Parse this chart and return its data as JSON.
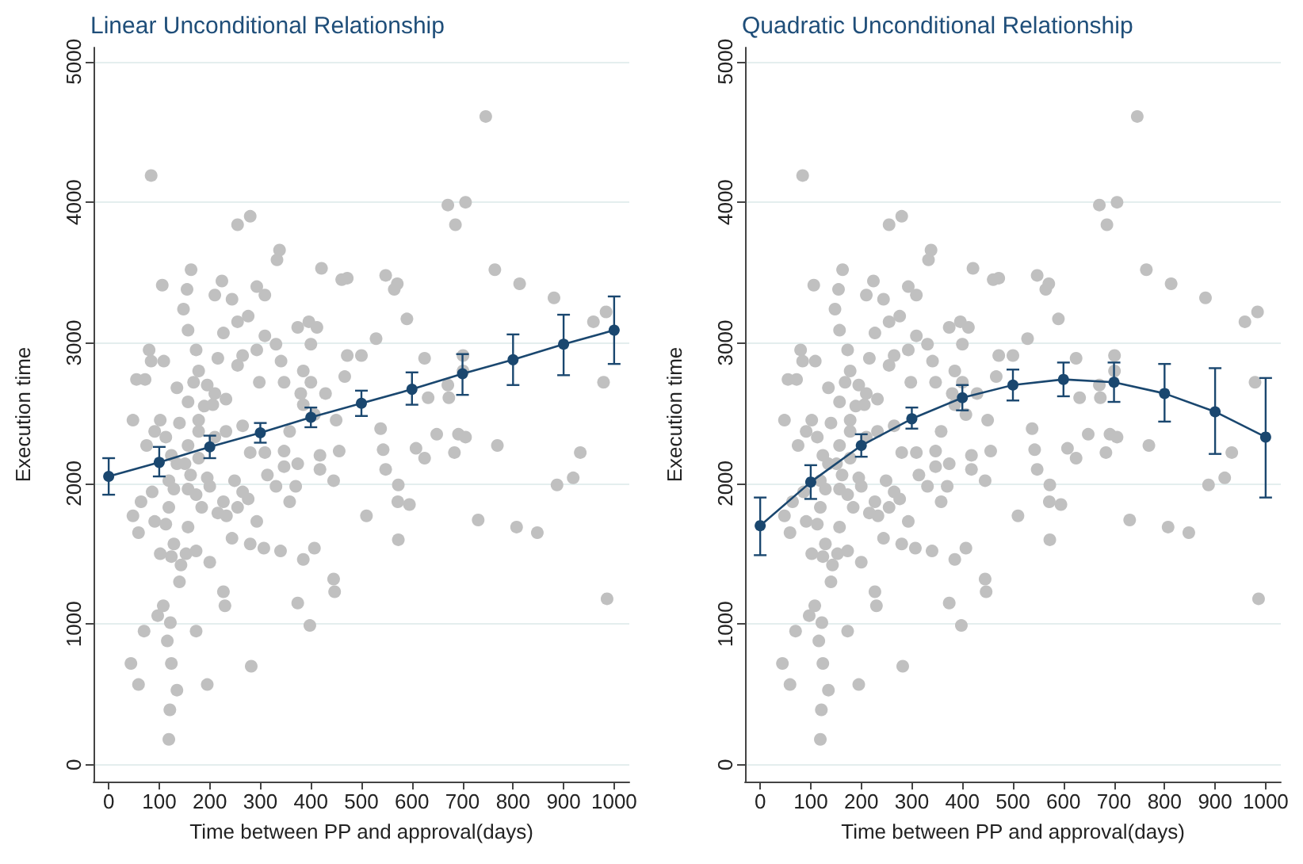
{
  "chart_data": [
    {
      "type": "scatter",
      "title": "Linear Unconditional Relationship",
      "xlabel": "Time between PP and approval(days)",
      "ylabel": "Execution time",
      "xlim": [
        -30,
        1030
      ],
      "ylim": [
        -120,
        5100
      ],
      "xticks": [
        0,
        100,
        200,
        300,
        400,
        500,
        600,
        700,
        800,
        900,
        1000
      ],
      "yticks": [
        0,
        1000,
        2000,
        3000,
        4000,
        5000
      ],
      "grid": "y",
      "marker": "circle",
      "series": [
        {
          "color": "#c0c0c0",
          "x": [
            84,
            255,
            280,
            746,
            671,
            706,
            686,
            333,
            338,
            163,
            106,
            421,
            764,
            813,
            881,
            959,
            984,
            979,
            769,
            684,
            933,
            919,
            887,
            731,
            807,
            848,
            986,
            510,
            573,
            595,
            572,
            573,
            461,
            472,
            548,
            565,
            571,
            529,
            590,
            632,
            625,
            608,
            625,
            538,
            548,
            543,
            701,
            701,
            692,
            706,
            649,
            671,
            673,
            500,
            472,
            467,
            450,
            456,
            418,
            418,
            445,
            445,
            447,
            385,
            407,
            398,
            374,
            340,
            307,
            280,
            293,
            282,
            195,
            200,
            227,
            230,
            173,
            70,
            97,
            108,
            122,
            116,
            124,
            135,
            121,
            119,
            44,
            59,
            48,
            59,
            48,
            55,
            72,
            80,
            84,
            109,
            91,
            75,
            91,
            102,
            124,
            140,
            143,
            153,
            157,
            129,
            140,
            178,
            148,
            155,
            157,
            178,
            173,
            216,
            227,
            210,
            224,
            244,
            265,
            255,
            276,
            293,
            309,
            309,
            293,
            331,
            341,
            347,
            298,
            255,
            232,
            210,
            189,
            178,
            210,
            232,
            265,
            280,
            309,
            314,
            331,
            358,
            347,
            380,
            385,
            374,
            396,
            400,
            412,
            400,
            429,
            407,
            385,
            358,
            347,
            374,
            370,
            265,
            249,
            255,
            276,
            233,
            244,
            227,
            200,
            184,
            173,
            162,
            151,
            135,
            119,
            124,
            157,
            113,
            129,
            119,
            86,
            64,
            113,
            102,
            157,
            195,
            206,
            168,
            135,
            178,
            195,
            216,
            173,
            157
          ],
          "values": [
            4190,
            3840,
            3900,
            4610,
            3980,
            4000,
            3840,
            3590,
            3660,
            3520,
            3410,
            3530,
            3520,
            3420,
            3320,
            3150,
            3220,
            2720,
            2270,
            2220,
            2220,
            2040,
            1990,
            1740,
            1690,
            1650,
            1180,
            1770,
            1600,
            1850,
            1870,
            1990,
            3450,
            3460,
            3480,
            3380,
            3420,
            3030,
            3170,
            2610,
            2890,
            2250,
            2180,
            2390,
            2100,
            2240,
            2910,
            2800,
            2350,
            2330,
            2350,
            2700,
            2610,
            2910,
            2910,
            2760,
            2450,
            2230,
            2200,
            2100,
            2020,
            1320,
            1230,
            1460,
            1540,
            990,
            1150,
            1520,
            1540,
            1570,
            1730,
            700,
            570,
            1440,
            1230,
            1130,
            950,
            950,
            1060,
            1130,
            1010,
            880,
            720,
            530,
            390,
            180,
            720,
            570,
            1770,
            1650,
            2450,
            2740,
            2740,
            2950,
            2870,
            2870,
            2370,
            2270,
            1730,
            1500,
            1480,
            1300,
            1420,
            1500,
            1960,
            1960,
            2430,
            2450,
            3240,
            3380,
            3090,
            2800,
            2950,
            2890,
            3070,
            3340,
            3440,
            3310,
            2910,
            3150,
            3190,
            3400,
            3340,
            3050,
            2950,
            2990,
            2870,
            2720,
            2720,
            2840,
            2600,
            2640,
            2550,
            2370,
            2330,
            2370,
            2410,
            2220,
            2220,
            2060,
            1980,
            1870,
            2230,
            2640,
            2800,
            3110,
            3150,
            2990,
            3110,
            2720,
            2640,
            2490,
            2560,
            2370,
            2120,
            2140,
            1980,
            1940,
            2020,
            1830,
            1890,
            1770,
            1610,
            1870,
            1980,
            1830,
            1920,
            2060,
            2140,
            2140,
            2020,
            2200,
            2270,
            1710,
            1570,
            1830,
            1940,
            1870,
            2330,
            2450,
            2580,
            2700,
            2560,
            2720,
            2680,
            2180,
            2040,
            1790,
            1520,
            1690
          ]
        },
        {
          "type": "line",
          "color": "#1a476f",
          "x": [
            0,
            100,
            200,
            300,
            400,
            500,
            600,
            700,
            800,
            900,
            1000
          ],
          "values": [
            2050,
            2150,
            2260,
            2360,
            2470,
            2570,
            2670,
            2780,
            2880,
            2990,
            3090
          ],
          "errors": [
            [
              1920,
              2180
            ],
            [
              2050,
              2260
            ],
            [
              2180,
              2340
            ],
            [
              2290,
              2430
            ],
            [
              2400,
              2540
            ],
            [
              2480,
              2660
            ],
            [
              2560,
              2790
            ],
            [
              2630,
              2920
            ],
            [
              2700,
              3060
            ],
            [
              2770,
              3200
            ],
            [
              2850,
              3330
            ]
          ]
        }
      ]
    },
    {
      "type": "scatter",
      "title": "Quadratic Unconditional Relationship",
      "xlabel": "Time between PP and approval(days)",
      "ylabel": "Execution time",
      "xlim": [
        -30,
        1030
      ],
      "ylim": [
        -120,
        5100
      ],
      "xticks": [
        0,
        100,
        200,
        300,
        400,
        500,
        600,
        700,
        800,
        900,
        1000
      ],
      "yticks": [
        0,
        1000,
        2000,
        3000,
        4000,
        5000
      ],
      "grid": "y",
      "marker": "circle",
      "series": [
        {
          "color": "#c0c0c0",
          "x": [
            84,
            255,
            280,
            746,
            671,
            706,
            686,
            333,
            338,
            163,
            106,
            421,
            764,
            813,
            881,
            959,
            984,
            979,
            769,
            684,
            933,
            919,
            887,
            731,
            807,
            848,
            986,
            510,
            573,
            595,
            572,
            573,
            461,
            472,
            548,
            565,
            571,
            529,
            590,
            632,
            625,
            608,
            625,
            538,
            548,
            543,
            701,
            701,
            692,
            706,
            649,
            671,
            673,
            500,
            472,
            467,
            450,
            456,
            418,
            418,
            445,
            445,
            447,
            385,
            407,
            398,
            374,
            340,
            307,
            280,
            293,
            282,
            195,
            200,
            227,
            230,
            173,
            70,
            97,
            108,
            122,
            116,
            124,
            135,
            121,
            119,
            44,
            59,
            48,
            59,
            48,
            55,
            72,
            80,
            84,
            109,
            91,
            75,
            91,
            102,
            124,
            140,
            143,
            153,
            157,
            129,
            140,
            178,
            148,
            155,
            157,
            178,
            173,
            216,
            227,
            210,
            224,
            244,
            265,
            255,
            276,
            293,
            309,
            309,
            293,
            331,
            341,
            347,
            298,
            255,
            232,
            210,
            189,
            178,
            210,
            232,
            265,
            280,
            309,
            314,
            331,
            358,
            347,
            380,
            385,
            374,
            396,
            400,
            412,
            400,
            429,
            407,
            385,
            358,
            347,
            374,
            370,
            265,
            249,
            255,
            276,
            233,
            244,
            227,
            200,
            184,
            173,
            162,
            151,
            135,
            119,
            124,
            157,
            113,
            129,
            119,
            86,
            64,
            113,
            102,
            157,
            195,
            206,
            168,
            135,
            178,
            195,
            216,
            173,
            157
          ],
          "values": [
            4190,
            3840,
            3900,
            4610,
            3980,
            4000,
            3840,
            3590,
            3660,
            3520,
            3410,
            3530,
            3520,
            3420,
            3320,
            3150,
            3220,
            2720,
            2270,
            2220,
            2220,
            2040,
            1990,
            1740,
            1690,
            1650,
            1180,
            1770,
            1600,
            1850,
            1870,
            1990,
            3450,
            3460,
            3480,
            3380,
            3420,
            3030,
            3170,
            2610,
            2890,
            2250,
            2180,
            2390,
            2100,
            2240,
            2910,
            2800,
            2350,
            2330,
            2350,
            2700,
            2610,
            2910,
            2910,
            2760,
            2450,
            2230,
            2200,
            2100,
            2020,
            1320,
            1230,
            1460,
            1540,
            990,
            1150,
            1520,
            1540,
            1570,
            1730,
            700,
            570,
            1440,
            1230,
            1130,
            950,
            950,
            1060,
            1130,
            1010,
            880,
            720,
            530,
            390,
            180,
            720,
            570,
            1770,
            1650,
            2450,
            2740,
            2740,
            2950,
            2870,
            2870,
            2370,
            2270,
            1730,
            1500,
            1480,
            1300,
            1420,
            1500,
            1960,
            1960,
            2430,
            2450,
            3240,
            3380,
            3090,
            2800,
            2950,
            2890,
            3070,
            3340,
            3440,
            3310,
            2910,
            3150,
            3190,
            3400,
            3340,
            3050,
            2950,
            2990,
            2870,
            2720,
            2720,
            2840,
            2600,
            2640,
            2550,
            2370,
            2330,
            2370,
            2410,
            2220,
            2220,
            2060,
            1980,
            1870,
            2230,
            2640,
            2800,
            3110,
            3150,
            2990,
            3110,
            2720,
            2640,
            2490,
            2560,
            2370,
            2120,
            2140,
            1980,
            1940,
            2020,
            1830,
            1890,
            1770,
            1610,
            1870,
            1980,
            1830,
            1920,
            2060,
            2140,
            2140,
            2020,
            2200,
            2270,
            1710,
            1570,
            1830,
            1940,
            1870,
            2330,
            2450,
            2580,
            2700,
            2560,
            2720,
            2680,
            2180,
            2040,
            1790,
            1520,
            1690
          ]
        },
        {
          "type": "line",
          "color": "#1a476f",
          "x": [
            0,
            100,
            200,
            300,
            400,
            500,
            600,
            700,
            800,
            900,
            1000
          ],
          "values": [
            1700,
            2010,
            2270,
            2460,
            2610,
            2700,
            2740,
            2720,
            2640,
            2510,
            2330
          ],
          "errors": [
            [
              1490,
              1900
            ],
            [
              1890,
              2130
            ],
            [
              2190,
              2350
            ],
            [
              2390,
              2540
            ],
            [
              2520,
              2700
            ],
            [
              2590,
              2810
            ],
            [
              2620,
              2860
            ],
            [
              2580,
              2860
            ],
            [
              2440,
              2850
            ],
            [
              2210,
              2820
            ],
            [
              1900,
              2750
            ]
          ]
        }
      ]
    }
  ]
}
